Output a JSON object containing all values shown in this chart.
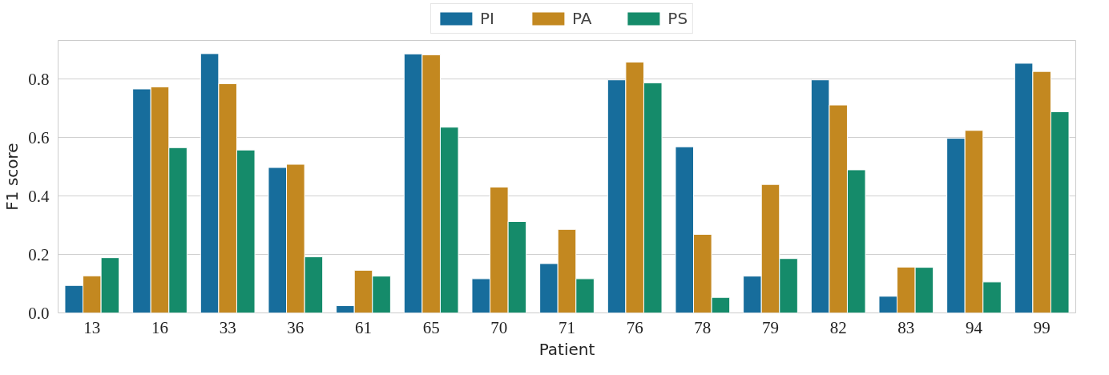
{
  "chart_data": {
    "type": "bar",
    "xlabel": "Patient",
    "ylabel": "F1 score",
    "categories": [
      "13",
      "16",
      "33",
      "36",
      "61",
      "65",
      "70",
      "71",
      "76",
      "78",
      "79",
      "82",
      "83",
      "94",
      "99"
    ],
    "series": [
      {
        "name": "PI",
        "color": "#176d9c",
        "values": [
          0.094,
          0.767,
          0.888,
          0.498,
          0.025,
          0.887,
          0.117,
          0.169,
          0.798,
          0.569,
          0.126,
          0.798,
          0.057,
          0.598,
          0.855
        ]
      },
      {
        "name": "PA",
        "color": "#c38820",
        "values": [
          0.127,
          0.774,
          0.785,
          0.509,
          0.146,
          0.884,
          0.431,
          0.286,
          0.859,
          0.269,
          0.44,
          0.712,
          0.157,
          0.625,
          0.827
        ]
      },
      {
        "name": "PS",
        "color": "#158b6a",
        "values": [
          0.189,
          0.566,
          0.558,
          0.192,
          0.126,
          0.636,
          0.313,
          0.117,
          0.788,
          0.053,
          0.186,
          0.49,
          0.156,
          0.106,
          0.689
        ]
      }
    ],
    "ylim": [
      0,
      0.933
    ],
    "yticks": [
      {
        "value": 0,
        "label": "0.0"
      },
      {
        "value": 0.2,
        "label": "0.2"
      },
      {
        "value": 0.4,
        "label": "0.4"
      },
      {
        "value": 0.6,
        "label": "0.6"
      },
      {
        "value": 0.8,
        "label": "0.8"
      }
    ],
    "grid": "y",
    "legend": "top"
  }
}
